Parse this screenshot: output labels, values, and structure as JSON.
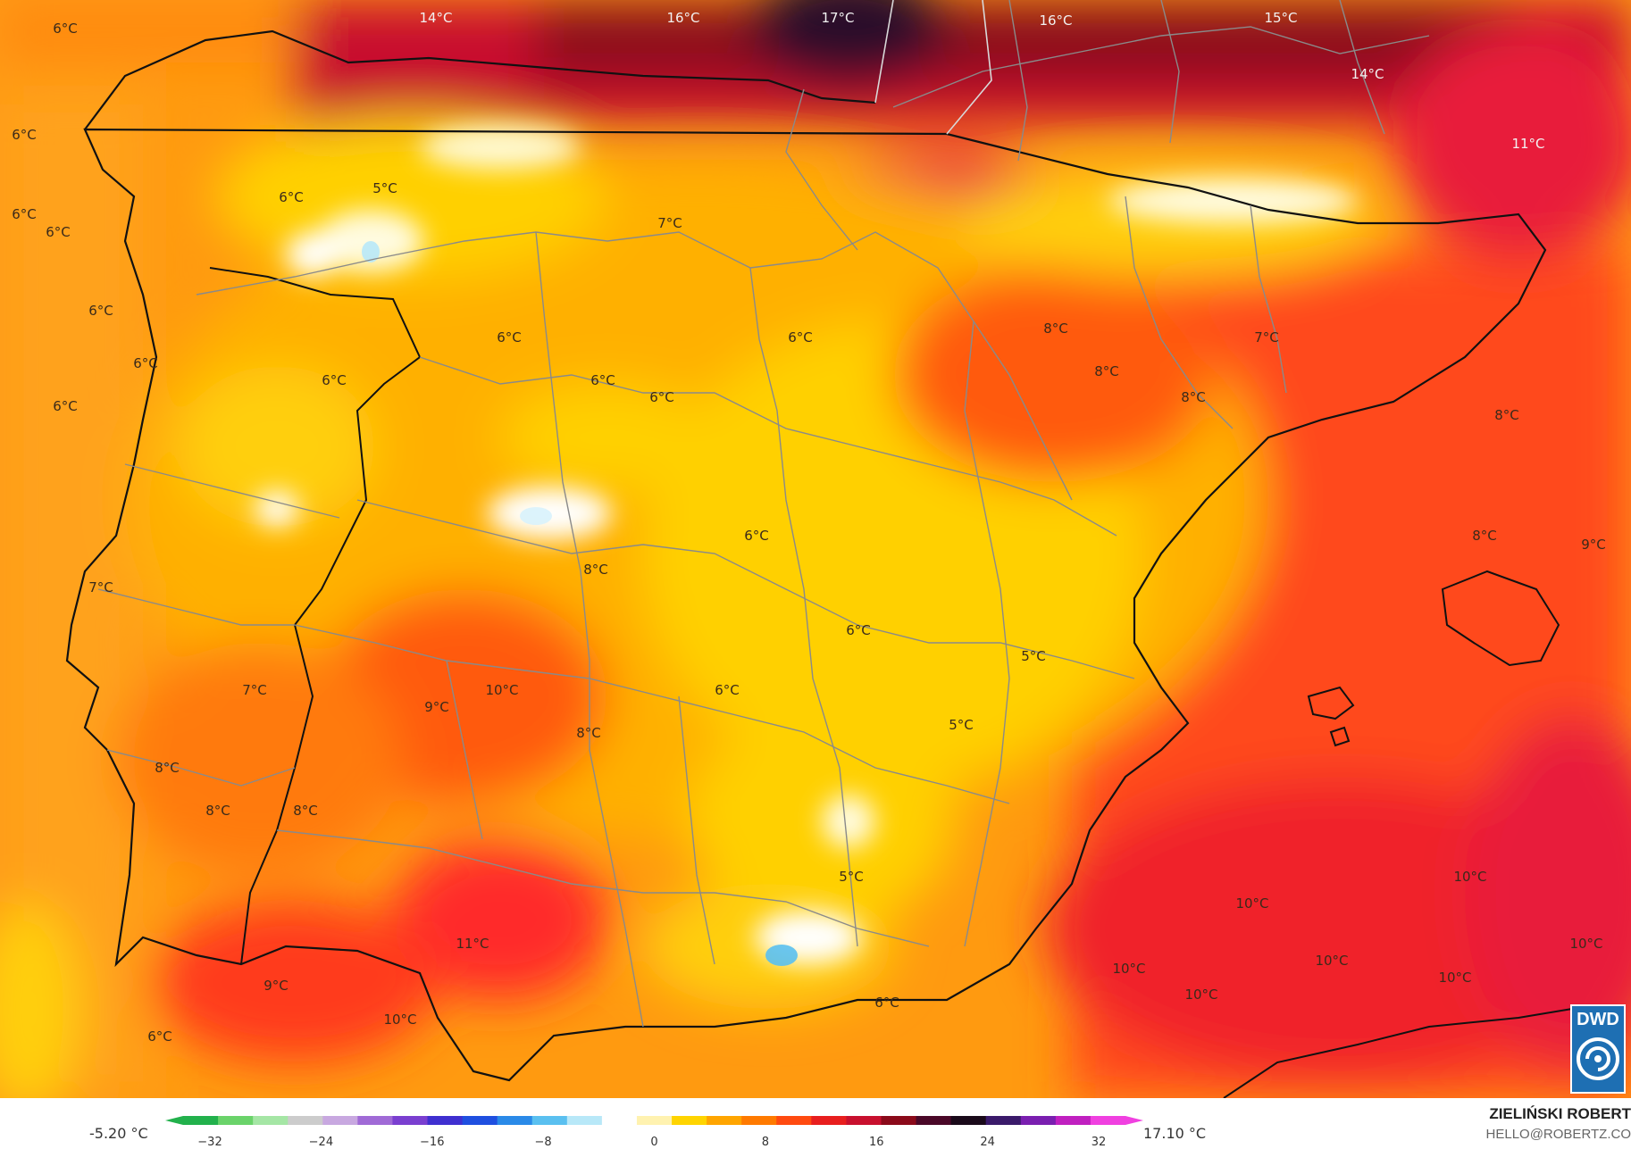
{
  "map": {
    "labels": [
      {
        "text": "14°C",
        "pos": [
          488,
          25
        ],
        "dark": true
      },
      {
        "text": "16°C",
        "pos": [
          765,
          25
        ],
        "dark": true
      },
      {
        "text": "17°C",
        "pos": [
          938,
          25
        ],
        "dark": true
      },
      {
        "text": "16°C",
        "pos": [
          1182,
          28
        ],
        "dark": true
      },
      {
        "text": "15°C",
        "pos": [
          1434,
          25
        ],
        "dark": true
      },
      {
        "text": "14°C",
        "pos": [
          1531,
          88
        ],
        "dark": true
      },
      {
        "text": "11°C",
        "pos": [
          1711,
          166
        ],
        "dark": true
      },
      {
        "text": "6°C",
        "pos": [
          73,
          37
        ]
      },
      {
        "text": "6°C",
        "pos": [
          27,
          156
        ]
      },
      {
        "text": "6°C",
        "pos": [
          27,
          245
        ]
      },
      {
        "text": "6°C",
        "pos": [
          65,
          265
        ]
      },
      {
        "text": "5°C",
        "pos": [
          431,
          216
        ]
      },
      {
        "text": "6°C",
        "pos": [
          326,
          226
        ]
      },
      {
        "text": "7°C",
        "pos": [
          750,
          255
        ]
      },
      {
        "text": "6°C",
        "pos": [
          113,
          353
        ]
      },
      {
        "text": "6°C",
        "pos": [
          163,
          412
        ]
      },
      {
        "text": "6°C",
        "pos": [
          73,
          460
        ]
      },
      {
        "text": "6°C",
        "pos": [
          374,
          431
        ]
      },
      {
        "text": "6°C",
        "pos": [
          570,
          383
        ]
      },
      {
        "text": "6°C",
        "pos": [
          675,
          431
        ]
      },
      {
        "text": "6°C",
        "pos": [
          741,
          450
        ]
      },
      {
        "text": "6°C",
        "pos": [
          896,
          383
        ]
      },
      {
        "text": "8°C",
        "pos": [
          1182,
          373
        ]
      },
      {
        "text": "7°C",
        "pos": [
          1418,
          383
        ]
      },
      {
        "text": "8°C",
        "pos": [
          1239,
          421
        ]
      },
      {
        "text": "8°C",
        "pos": [
          1336,
          450
        ]
      },
      {
        "text": "8°C",
        "pos": [
          1687,
          470
        ]
      },
      {
        "text": "8°C",
        "pos": [
          1662,
          605
        ]
      },
      {
        "text": "9°C",
        "pos": [
          1784,
          615
        ]
      },
      {
        "text": "6°C",
        "pos": [
          847,
          605
        ]
      },
      {
        "text": "7°C",
        "pos": [
          113,
          663
        ]
      },
      {
        "text": "8°C",
        "pos": [
          667,
          643
        ]
      },
      {
        "text": "6°C",
        "pos": [
          961,
          711
        ]
      },
      {
        "text": "5°C",
        "pos": [
          1157,
          740
        ]
      },
      {
        "text": "7°C",
        "pos": [
          285,
          778
        ]
      },
      {
        "text": "10°C",
        "pos": [
          562,
          778
        ]
      },
      {
        "text": "6°C",
        "pos": [
          814,
          778
        ]
      },
      {
        "text": "9°C",
        "pos": [
          489,
          797
        ]
      },
      {
        "text": "8°C",
        "pos": [
          659,
          826
        ]
      },
      {
        "text": "5°C",
        "pos": [
          1076,
          817
        ]
      },
      {
        "text": "8°C",
        "pos": [
          187,
          865
        ]
      },
      {
        "text": "8°C",
        "pos": [
          244,
          913
        ]
      },
      {
        "text": "8°C",
        "pos": [
          342,
          913
        ]
      },
      {
        "text": "5°C",
        "pos": [
          953,
          987
        ]
      },
      {
        "text": "10°C",
        "pos": [
          1402,
          1017
        ]
      },
      {
        "text": "10°C",
        "pos": [
          1646,
          987
        ]
      },
      {
        "text": "11°C",
        "pos": [
          529,
          1062
        ]
      },
      {
        "text": "10°C",
        "pos": [
          1491,
          1081
        ]
      },
      {
        "text": "10°C",
        "pos": [
          1776,
          1062
        ]
      },
      {
        "text": "10°C",
        "pos": [
          1264,
          1090
        ]
      },
      {
        "text": "10°C",
        "pos": [
          1629,
          1100
        ]
      },
      {
        "text": "9°C",
        "pos": [
          309,
          1109
        ]
      },
      {
        "text": "10°C",
        "pos": [
          1345,
          1119
        ]
      },
      {
        "text": "10°C",
        "pos": [
          448,
          1147
        ]
      },
      {
        "text": "6°C",
        "pos": [
          993,
          1128
        ]
      },
      {
        "text": "6°C",
        "pos": [
          179,
          1166
        ]
      }
    ]
  },
  "legend": {
    "min_label": "-5.20 °C",
    "max_label": "17.10 °C",
    "ticks": [
      "−32",
      "−24",
      "−16",
      "−8",
      "0",
      "8",
      "16",
      "24",
      "32"
    ],
    "colors": [
      "#22b14c",
      "#6ad36a",
      "#a5e6a5",
      "#cccccc",
      "#c8a8e0",
      "#a06ad6",
      "#7a3fd0",
      "#3f2fd0",
      "#1f4fe0",
      "#2a8ae8",
      "#5ac0f0",
      "#b8e8f8",
      "#ffffff",
      "#fff2b0",
      "#ffd400",
      "#ffa500",
      "#ff7a00",
      "#ff4a10",
      "#e81e1e",
      "#c8102e",
      "#8b0a1a",
      "#4a0828",
      "#1a0a1a",
      "#3a1a6a",
      "#7a1fb0",
      "#c020c0",
      "#f040e0"
    ]
  },
  "credits": {
    "author": "ZIELIŃSKI ROBERT",
    "email": "HELLO@ROBERTZ.CO",
    "logo_text": "DWD"
  }
}
